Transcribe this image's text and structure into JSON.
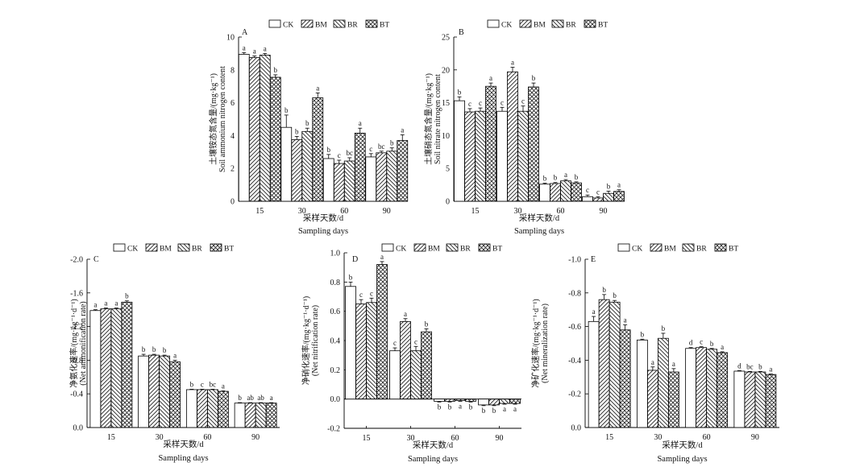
{
  "legend_labels": [
    "CK",
    "BM",
    "BR",
    "BT"
  ],
  "colors": {
    "axis": "#000000",
    "bar_fill": "#ffffff",
    "pattern_stroke": "#222222"
  },
  "chart_data": [
    {
      "type": "bar",
      "panel": "A",
      "categories": [
        "15",
        "30",
        "60",
        "90"
      ],
      "series": [
        {
          "name": "CK",
          "values": [
            8.95,
            4.5,
            2.6,
            2.7
          ],
          "errors": [
            0.1,
            0.75,
            0.25,
            0.2
          ],
          "letters": [
            "a",
            "b",
            "b",
            "c"
          ]
        },
        {
          "name": "BM",
          "values": [
            8.75,
            3.75,
            2.3,
            2.95
          ],
          "errors": [
            0.1,
            0.2,
            0.2,
            0.1
          ],
          "letters": [
            "a",
            "b",
            "c",
            "bc"
          ]
        },
        {
          "name": "BR",
          "values": [
            8.9,
            4.25,
            2.45,
            3.05
          ],
          "errors": [
            0.1,
            0.2,
            0.2,
            0.2
          ],
          "letters": [
            "a",
            "b",
            "bc",
            "b"
          ]
        },
        {
          "name": "BT",
          "values": [
            7.55,
            6.3,
            4.15,
            3.7
          ],
          "errors": [
            0.15,
            0.3,
            0.3,
            0.35
          ],
          "letters": [
            "b",
            "a",
            "a",
            "a"
          ]
        }
      ],
      "ylabel_cn": "土壤铵态氮含量/(mg·kg⁻¹)",
      "ylabel_en": "Soil ammonium nitrogen content",
      "xlabel_cn": "采样天数/d",
      "xlabel_en": "Sampling days",
      "ylim": [
        0,
        10
      ],
      "yticks": [
        0,
        2,
        4,
        6,
        8,
        10
      ],
      "ytick_labels": [
        "0",
        "2",
        "4",
        "6",
        "8",
        "10"
      ],
      "legend_position": "top"
    },
    {
      "type": "bar",
      "panel": "B",
      "categories": [
        "15",
        "30",
        "60",
        "90"
      ],
      "series": [
        {
          "name": "CK",
          "values": [
            15.3,
            13.7,
            2.6,
            0.7
          ],
          "errors": [
            0.6,
            0.6,
            0.15,
            0.25
          ],
          "letters": [
            "b",
            "c",
            "b",
            "c"
          ]
        },
        {
          "name": "BM",
          "values": [
            13.6,
            19.7,
            2.7,
            0.5
          ],
          "errors": [
            0.5,
            0.7,
            0.15,
            0.2
          ],
          "letters": [
            "c",
            "a",
            "b",
            "c"
          ]
        },
        {
          "name": "BR",
          "values": [
            13.7,
            13.7,
            3.1,
            1.2
          ],
          "errors": [
            0.5,
            0.8,
            0.2,
            0.35
          ],
          "letters": [
            "c",
            "c",
            "a",
            "b"
          ]
        },
        {
          "name": "BT",
          "values": [
            17.5,
            17.4,
            2.8,
            1.5
          ],
          "errors": [
            0.5,
            0.6,
            0.15,
            0.25
          ],
          "letters": [
            "a",
            "b",
            "b",
            "a"
          ]
        }
      ],
      "ylabel_cn": "土壤硝态氮含量/(mg·kg⁻¹)",
      "ylabel_en": "Soil nitrate nitrogen content",
      "xlabel_cn": "采样天数/d",
      "xlabel_en": "Sampling days",
      "ylim": [
        0,
        25
      ],
      "yticks": [
        0,
        5,
        10,
        15,
        20,
        25
      ],
      "ytick_labels": [
        "0",
        "5",
        "10",
        "15",
        "20",
        "25"
      ],
      "legend_position": "top"
    },
    {
      "type": "bar",
      "panel": "C",
      "categories": [
        "15",
        "30",
        "60",
        "90"
      ],
      "series": [
        {
          "name": "CK",
          "values": [
            -1.39,
            -0.85,
            -0.45,
            -0.29
          ],
          "errors": [
            0.01,
            0.02,
            0.005,
            0.005
          ],
          "letters": [
            "a",
            "b",
            "b",
            "b"
          ]
        },
        {
          "name": "BM",
          "values": [
            -1.41,
            -0.86,
            -0.45,
            -0.29
          ],
          "errors": [
            0.01,
            0.01,
            0.005,
            0.005
          ],
          "letters": [
            "a",
            "b",
            "c",
            "ab"
          ]
        },
        {
          "name": "BR",
          "values": [
            -1.41,
            -0.85,
            -0.45,
            -0.29
          ],
          "errors": [
            0.01,
            0.01,
            0.005,
            0.005
          ],
          "letters": [
            "a",
            "b",
            "bc",
            "ab"
          ]
        },
        {
          "name": "BT",
          "values": [
            -1.49,
            -0.78,
            -0.43,
            -0.29
          ],
          "errors": [
            0.015,
            0.02,
            0.005,
            0.005
          ],
          "letters": [
            "b",
            "a",
            "a",
            "a"
          ]
        }
      ],
      "ylabel_cn": "净氨化速率/(mg·kg⁻¹·d⁻¹)",
      "ylabel_en": "(Net ammonification rate)",
      "xlabel_cn": "采样天数/d",
      "xlabel_en": "Sampling days",
      "ylim": [
        0,
        -2.0
      ],
      "inverted_y": true,
      "yticks": [
        0,
        -0.4,
        -0.8,
        -1.2,
        -1.6,
        -2.0
      ],
      "ytick_labels": [
        "0.0",
        "-0.4",
        "-0.8",
        "-1.2",
        "-1.6",
        "-2.0"
      ],
      "legend_position": "top"
    },
    {
      "type": "bar",
      "panel": "D",
      "categories": [
        "15",
        "30",
        "60",
        "90"
      ],
      "series": [
        {
          "name": "CK",
          "values": [
            0.77,
            0.33,
            -0.015,
            -0.04
          ],
          "errors": [
            0.03,
            0.02,
            0.005,
            0.005
          ],
          "letters": [
            "b",
            "c",
            "b",
            "b"
          ]
        },
        {
          "name": "BM",
          "values": [
            0.65,
            0.53,
            -0.015,
            -0.04
          ],
          "errors": [
            0.03,
            0.02,
            0.005,
            0.005
          ],
          "letters": [
            "c",
            "a",
            "b",
            "b"
          ]
        },
        {
          "name": "BR",
          "values": [
            0.66,
            0.33,
            -0.01,
            -0.03
          ],
          "errors": [
            0.03,
            0.03,
            0.005,
            0.005
          ],
          "letters": [
            "c",
            "c",
            "a",
            "a"
          ]
        },
        {
          "name": "BT",
          "values": [
            0.92,
            0.46,
            -0.015,
            -0.03
          ],
          "errors": [
            0.02,
            0.02,
            0.005,
            0.005
          ],
          "letters": [
            "a",
            "b",
            "b",
            "a"
          ]
        }
      ],
      "ylabel_cn": "净硝化速率/(mg·kg⁻¹·d⁻¹)",
      "ylabel_en": "(Net nitrification rate)",
      "xlabel_cn": "采样天数/d",
      "xlabel_en": "Sampling days",
      "ylim": [
        -0.2,
        1.0
      ],
      "yticks": [
        -0.2,
        0,
        0.2,
        0.4,
        0.6,
        0.8,
        1.0
      ],
      "ytick_labels": [
        "-0.2",
        "0.0",
        "0.2",
        "0.4",
        "0.6",
        "0.8",
        "1.0"
      ],
      "legend_position": "top"
    },
    {
      "type": "bar",
      "panel": "E",
      "categories": [
        "15",
        "30",
        "60",
        "90"
      ],
      "series": [
        {
          "name": "CK",
          "values": [
            -0.63,
            -0.52,
            -0.47,
            -0.335
          ],
          "errors": [
            0.03,
            0.005,
            0.005,
            0.003
          ],
          "letters": [
            "a",
            "b",
            "d",
            "d"
          ]
        },
        {
          "name": "BM",
          "values": [
            -0.76,
            -0.34,
            -0.475,
            -0.33
          ],
          "errors": [
            0.03,
            0.02,
            0.005,
            0.003
          ],
          "letters": [
            "b",
            "a",
            "c",
            "bc"
          ]
        },
        {
          "name": "BR",
          "values": [
            -0.745,
            -0.53,
            -0.465,
            -0.33
          ],
          "errors": [
            0.01,
            0.03,
            0.005,
            0.003
          ],
          "letters": [
            "b",
            "b",
            "b",
            "b"
          ]
        },
        {
          "name": "BT",
          "values": [
            -0.58,
            -0.33,
            -0.445,
            -0.315
          ],
          "errors": [
            0.03,
            0.02,
            0.005,
            0.003
          ],
          "letters": [
            "a",
            "a",
            "a",
            "a"
          ]
        }
      ],
      "ylabel_cn": "净矿化速率/(mg·kg⁻¹·d⁻¹)",
      "ylabel_en": "(Net mineralization rate)",
      "xlabel_cn": "采样天数/d",
      "xlabel_en": "Sampling days",
      "ylim": [
        0,
        -1.0
      ],
      "inverted_y": true,
      "yticks": [
        0,
        -0.2,
        -0.4,
        -0.6,
        -0.8,
        -1.0
      ],
      "ytick_labels": [
        "0.0",
        "-0.2",
        "-0.4",
        "-0.6",
        "-0.8",
        "-1.0"
      ],
      "legend_position": "top"
    }
  ]
}
